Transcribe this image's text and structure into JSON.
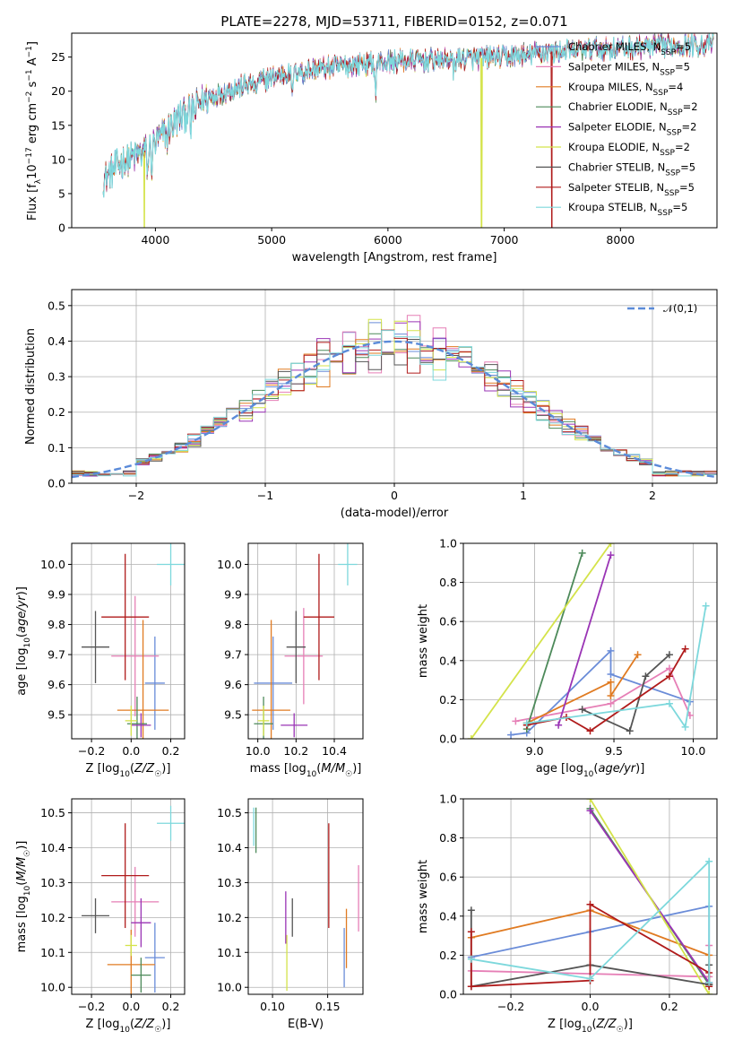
{
  "figure": {
    "title": "PLATE=2278, MJD=53711, FIBERID=0152, z=0.071",
    "colors": {
      "Chabrier MILES": "#6a8cd8",
      "Salpeter MILES": "#e67fb6",
      "Kroupa MILES": "#e07b22",
      "Chabrier ELODIE": "#4d8a5a",
      "Salpeter ELODIE": "#9a34b5",
      "Kroupa ELODIE": "#d4e34a",
      "Chabrier STELIB": "#555555",
      "Salpeter STELIB": "#b01b1b",
      "Kroupa STELIB": "#7dd8dc"
    }
  },
  "chart_data": [
    {
      "type": "line",
      "id": "spectrum",
      "title": "PLATE=2278, MJD=53711, FIBERID=0152, z=0.071",
      "xlabel": "wavelength [Angstrom, rest frame]",
      "ylabel": "Flux [f$_\\lambda$10$^{-17}$ erg cm$^{-2}$ s$^{-1}$ A$^{-1}$]",
      "ylabel_parts": [
        "Flux [f",
        "λ",
        "10",
        "−17",
        " erg cm",
        "−2",
        " s",
        "−1",
        " A",
        "−1",
        "]"
      ],
      "xlim": [
        3280,
        8830
      ],
      "ylim": [
        0,
        28.5
      ],
      "xticks": [
        4000,
        5000,
        6000,
        7000,
        8000
      ],
      "yticks": [
        0,
        5,
        10,
        15,
        20,
        25
      ],
      "grid": false,
      "legend_position": "top-right",
      "legend": [
        {
          "name": "Chabrier MILES",
          "nssp": "5"
        },
        {
          "name": "Salpeter MILES",
          "nssp": "5"
        },
        {
          "name": "Kroupa MILES",
          "nssp": "4"
        },
        {
          "name": "Chabrier ELODIE",
          "nssp": "2"
        },
        {
          "name": "Salpeter ELODIE",
          "nssp": "2"
        },
        {
          "name": "Kroupa ELODIE",
          "nssp": "2"
        },
        {
          "name": "Chabrier STELIB",
          "nssp": "5"
        },
        {
          "name": "Salpeter STELIB",
          "nssp": "5"
        },
        {
          "name": "Kroupa STELIB",
          "nssp": "5"
        }
      ],
      "continuum": {
        "x": [
          3550,
          3700,
          3900,
          4000,
          4200,
          4400,
          4600,
          4800,
          5000,
          5200,
          5500,
          5800,
          6000,
          6300,
          6600,
          7000,
          7400,
          7800,
          8200,
          8600
        ],
        "y": [
          7,
          9.5,
          11,
          12.5,
          16,
          18.5,
          20,
          21,
          22,
          23,
          23.5,
          24,
          24.3,
          24.5,
          24.7,
          25,
          25.8,
          26.2,
          26.5,
          26.8
        ]
      },
      "features": [
        {
          "x": 3933,
          "depth": 3.5
        },
        {
          "x": 3968,
          "depth": 3.0
        },
        {
          "x": 4101,
          "depth": 1.5
        },
        {
          "x": 4305,
          "depth": 3.0
        },
        {
          "x": 4340,
          "depth": 1.5
        },
        {
          "x": 4861,
          "depth": 2.0
        },
        {
          "x": 5175,
          "depth": 4.0
        },
        {
          "x": 5270,
          "depth": 1.5
        },
        {
          "x": 5893,
          "depth": 4.5
        },
        {
          "x": 6563,
          "depth": 2.0
        },
        {
          "x": 7190,
          "depth": 1.0
        },
        {
          "x": 7600,
          "depth": 1.0
        }
      ],
      "artifacts": [
        {
          "series": "Kroupa ELODIE",
          "x": 3905
        },
        {
          "series": "Kroupa ELODIE",
          "x": 6805
        },
        {
          "series": "Salpeter STELIB",
          "x": 7410
        }
      ]
    },
    {
      "type": "histogram",
      "id": "residuals",
      "xlabel": "(data-model)/error",
      "ylabel": "Normed distribution",
      "xlim": [
        -2.5,
        2.5
      ],
      "ylim": [
        0,
        0.545
      ],
      "xticks": [
        -2,
        -1,
        0,
        1,
        2
      ],
      "yticks": [
        0.0,
        0.1,
        0.2,
        0.3,
        0.4,
        0.5
      ],
      "grid": true,
      "bin_width": 0.1,
      "reference_curve": {
        "name": "𝒩(0,1)",
        "style": "dashed"
      },
      "legend_position": "top-right"
    },
    {
      "type": "scatter",
      "id": "age-vs-Z",
      "xlabel": "Z [log10(Z/Z☉)]",
      "ylabel": "age [log10(age/yr)]",
      "xlim": [
        -0.3,
        0.27
      ],
      "ylim": [
        9.42,
        10.07
      ],
      "xticks": [
        -0.2,
        0.0,
        0.2
      ],
      "yticks": [
        9.5,
        9.6,
        9.7,
        9.8,
        9.9,
        10.0
      ],
      "grid": true,
      "points": [
        {
          "series": "Chabrier MILES",
          "x": 0.12,
          "y": 9.605,
          "xerr": 0.05,
          "yerr": 0.155
        },
        {
          "series": "Salpeter MILES",
          "x": 0.02,
          "y": 9.695,
          "xerr": 0.12,
          "yerr": 0.2
        },
        {
          "series": "Kroupa MILES",
          "x": 0.06,
          "y": 9.515,
          "xerr": 0.13,
          "yerr": 0.3
        },
        {
          "series": "Chabrier ELODIE",
          "x": 0.03,
          "y": 9.47,
          "xerr": 0.05,
          "yerr": 0.09
        },
        {
          "series": "Salpeter ELODIE",
          "x": 0.05,
          "y": 9.465,
          "xerr": 0.05,
          "yerr": 0.04
        },
        {
          "series": "Kroupa ELODIE",
          "x": 0.0,
          "y": 9.48,
          "xerr": 0.03,
          "yerr": 0.05
        },
        {
          "series": "Chabrier STELIB",
          "x": -0.18,
          "y": 9.725,
          "xerr": 0.07,
          "yerr": 0.12
        },
        {
          "series": "Salpeter STELIB",
          "x": -0.03,
          "y": 9.825,
          "xerr": 0.12,
          "yerr": 0.21
        },
        {
          "series": "Kroupa STELIB",
          "x": 0.2,
          "y": 10.0,
          "xerr": 0.07,
          "yerr": 0.07
        }
      ]
    },
    {
      "type": "scatter",
      "id": "age-vs-mass",
      "xlabel": "mass [log10(M/M☉)]",
      "ylabel": "",
      "xlim": [
        9.95,
        10.55
      ],
      "ylim": [
        9.42,
        10.07
      ],
      "xticks": [
        10.0,
        10.2,
        10.4
      ],
      "yticks": [
        9.5,
        9.6,
        9.7,
        9.8,
        9.9,
        10.0
      ],
      "grid": true,
      "points": [
        {
          "series": "Chabrier MILES",
          "x": 10.08,
          "y": 9.605,
          "xerr": 0.1,
          "yerr": 0.155
        },
        {
          "series": "Salpeter MILES",
          "x": 10.24,
          "y": 9.695,
          "xerr": 0.1,
          "yerr": 0.16
        },
        {
          "series": "Kroupa MILES",
          "x": 10.07,
          "y": 9.515,
          "xerr": 0.1,
          "yerr": 0.3
        },
        {
          "series": "Chabrier ELODIE",
          "x": 10.03,
          "y": 9.47,
          "xerr": 0.05,
          "yerr": 0.09
        },
        {
          "series": "Salpeter ELODIE",
          "x": 10.19,
          "y": 9.465,
          "xerr": 0.07,
          "yerr": 0.04
        },
        {
          "series": "Kroupa ELODIE",
          "x": 10.03,
          "y": 9.48,
          "xerr": 0.03,
          "yerr": 0.05
        },
        {
          "series": "Chabrier STELIB",
          "x": 10.2,
          "y": 9.725,
          "xerr": 0.05,
          "yerr": 0.12
        },
        {
          "series": "Salpeter STELIB",
          "x": 10.32,
          "y": 9.825,
          "xerr": 0.08,
          "yerr": 0.21
        },
        {
          "series": "Kroupa STELIB",
          "x": 10.47,
          "y": 10.0,
          "xerr": 0.05,
          "yerr": 0.07
        }
      ]
    },
    {
      "type": "line",
      "id": "weight-vs-age",
      "xlabel": "age [log10(age/yr)]",
      "ylabel": "mass weight",
      "xlim": [
        8.55,
        10.15
      ],
      "ylim": [
        0,
        1
      ],
      "xticks": [
        9.0,
        9.5,
        10.0
      ],
      "yticks": [
        0.0,
        0.2,
        0.4,
        0.6,
        0.8,
        1.0
      ],
      "grid": true,
      "series": [
        {
          "name": "Chabrier MILES",
          "x": [
            8.85,
            8.95,
            9.48,
            9.48,
            9.98
          ],
          "y": [
            0.02,
            0.03,
            0.45,
            0.33,
            0.19
          ]
        },
        {
          "name": "Salpeter MILES",
          "x": [
            8.88,
            9.48,
            9.85,
            9.98
          ],
          "y": [
            0.09,
            0.18,
            0.36,
            0.12
          ]
        },
        {
          "name": "Kroupa MILES",
          "x": [
            8.95,
            9.48,
            9.48,
            9.65
          ],
          "y": [
            0.08,
            0.29,
            0.22,
            0.43
          ]
        },
        {
          "name": "Chabrier ELODIE",
          "x": [
            8.95,
            9.3
          ],
          "y": [
            0.05,
            0.95
          ]
        },
        {
          "name": "Salpeter ELODIE",
          "x": [
            9.15,
            9.48
          ],
          "y": [
            0.07,
            0.94
          ]
        },
        {
          "name": "Kroupa ELODIE",
          "x": [
            8.6,
            9.48
          ],
          "y": [
            0.0,
            1.0
          ]
        },
        {
          "name": "Chabrier STELIB",
          "x": [
            9.3,
            9.6,
            9.7,
            9.85
          ],
          "y": [
            0.15,
            0.04,
            0.32,
            0.43
          ]
        },
        {
          "name": "Salpeter STELIB",
          "x": [
            8.95,
            9.2,
            9.35,
            9.85,
            9.95
          ],
          "y": [
            0.07,
            0.11,
            0.04,
            0.32,
            0.46
          ]
        },
        {
          "name": "Kroupa STELIB",
          "x": [
            8.95,
            9.85,
            9.95,
            10.08
          ],
          "y": [
            0.08,
            0.18,
            0.06,
            0.68
          ]
        }
      ]
    },
    {
      "type": "scatter",
      "id": "mass-vs-Z",
      "xlabel": "Z [log10(Z/Z☉)]",
      "ylabel": "mass [log10(M/M☉)]",
      "xlim": [
        -0.3,
        0.27
      ],
      "ylim": [
        9.98,
        10.54
      ],
      "xticks": [
        -0.2,
        0.0,
        0.2
      ],
      "yticks": [
        10.0,
        10.1,
        10.2,
        10.3,
        10.4,
        10.5
      ],
      "grid": true,
      "points": [
        {
          "series": "Chabrier MILES",
          "x": 0.12,
          "y": 10.085,
          "xerr": 0.05,
          "yerr": 0.1
        },
        {
          "series": "Salpeter MILES",
          "x": 0.02,
          "y": 10.245,
          "xerr": 0.12,
          "yerr": 0.1
        },
        {
          "series": "Kroupa MILES",
          "x": 0.0,
          "y": 10.065,
          "xerr": 0.12,
          "yerr": 0.1
        },
        {
          "series": "Chabrier ELODIE",
          "x": 0.05,
          "y": 10.035,
          "xerr": 0.05,
          "yerr": 0.05
        },
        {
          "series": "Salpeter ELODIE",
          "x": 0.05,
          "y": 10.185,
          "xerr": 0.05,
          "yerr": 0.07
        },
        {
          "series": "Kroupa ELODIE",
          "x": 0.0,
          "y": 10.12,
          "xerr": 0.03,
          "yerr": 0.03
        },
        {
          "series": "Chabrier STELIB",
          "x": -0.18,
          "y": 10.205,
          "xerr": 0.07,
          "yerr": 0.05
        },
        {
          "series": "Salpeter STELIB",
          "x": -0.03,
          "y": 10.32,
          "xerr": 0.12,
          "yerr": 0.15
        },
        {
          "series": "Kroupa STELIB",
          "x": 0.2,
          "y": 10.47,
          "xerr": 0.07,
          "yerr": 0.05
        }
      ]
    },
    {
      "type": "scatter",
      "id": "mass-vs-EBV",
      "xlabel": "E(B-V)",
      "ylabel": "",
      "xlim": [
        0.078,
        0.182
      ],
      "ylim": [
        9.98,
        10.54
      ],
      "xticks": [
        0.1,
        0.15
      ],
      "yticks": [
        10.0,
        10.1,
        10.2,
        10.3,
        10.4,
        10.5
      ],
      "grid": true,
      "points": [
        {
          "series": "Chabrier MILES",
          "x": 0.165,
          "y": 10.085,
          "yerr": 0.085
        },
        {
          "series": "Salpeter MILES",
          "x": 0.178,
          "y": 10.255,
          "yerr": 0.095
        },
        {
          "series": "Kroupa MILES",
          "x": 0.167,
          "y": 10.14,
          "yerr": 0.085
        },
        {
          "series": "Chabrier ELODIE",
          "x": 0.085,
          "y": 10.45,
          "yerr": 0.065
        },
        {
          "series": "Salpeter ELODIE",
          "x": 0.112,
          "y": 10.2,
          "yerr": 0.075
        },
        {
          "series": "Kroupa ELODIE",
          "x": 0.113,
          "y": 10.07,
          "yerr": 0.08
        },
        {
          "series": "Chabrier STELIB",
          "x": 0.118,
          "y": 10.2,
          "yerr": 0.055
        },
        {
          "series": "Salpeter STELIB",
          "x": 0.151,
          "y": 10.32,
          "yerr": 0.15
        },
        {
          "series": "Kroupa STELIB",
          "x": 0.083,
          "y": 10.46,
          "yerr": 0.055
        }
      ]
    },
    {
      "type": "line",
      "id": "weight-vs-Z",
      "xlabel": "Z [log10(Z/Z☉)]",
      "ylabel": "mass weight",
      "xlim": [
        -0.32,
        0.32
      ],
      "ylim": [
        0,
        1
      ],
      "xticks": [
        -0.2,
        0.0,
        0.2
      ],
      "yticks": [
        0.0,
        0.2,
        0.4,
        0.6,
        0.8,
        1.0
      ],
      "grid": true,
      "series": [
        {
          "name": "Chabrier MILES",
          "x": [
            -0.3,
            0.0,
            0.3,
            0.3
          ],
          "y": [
            0.19,
            0.32,
            0.45,
            0.05
          ]
        },
        {
          "name": "Salpeter MILES",
          "x": [
            -0.3,
            0.3,
            0.3
          ],
          "y": [
            0.12,
            0.09,
            0.25
          ]
        },
        {
          "name": "Kroupa MILES",
          "x": [
            -0.3,
            0.0,
            0.3,
            0.3
          ],
          "y": [
            0.29,
            0.43,
            0.2,
            0.05
          ]
        },
        {
          "name": "Chabrier ELODIE",
          "x": [
            0.0,
            0.3
          ],
          "y": [
            0.95,
            0.05
          ]
        },
        {
          "name": "Salpeter ELODIE",
          "x": [
            0.0,
            0.3
          ],
          "y": [
            0.94,
            0.06
          ]
        },
        {
          "name": "Kroupa ELODIE",
          "x": [
            0.0,
            0.3
          ],
          "y": [
            1.0,
            0.0
          ]
        },
        {
          "name": "Chabrier STELIB",
          "x": [
            -0.3,
            -0.3,
            0.0,
            0.3,
            0.3
          ],
          "y": [
            0.43,
            0.04,
            0.15,
            0.05,
            0.15
          ]
        },
        {
          "name": "Salpeter STELIB",
          "x": [
            -0.3,
            -0.3,
            0.0,
            0.0,
            0.3,
            0.3
          ],
          "y": [
            0.32,
            0.04,
            0.07,
            0.46,
            0.11,
            0.04
          ]
        },
        {
          "name": "Kroupa STELIB",
          "x": [
            -0.3,
            0.0,
            0.3,
            0.3
          ],
          "y": [
            0.18,
            0.08,
            0.68,
            0.06
          ]
        }
      ]
    }
  ]
}
